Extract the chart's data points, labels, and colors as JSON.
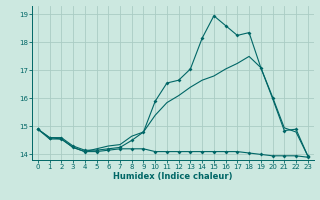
{
  "xlabel": "Humidex (Indice chaleur)",
  "bg_color": "#cce8e0",
  "grid_color": "#aaccc4",
  "line_color": "#006666",
  "xlim": [
    -0.5,
    23.5
  ],
  "ylim": [
    13.8,
    19.3
  ],
  "yticks": [
    14,
    15,
    16,
    17,
    18,
    19
  ],
  "xticks": [
    0,
    1,
    2,
    3,
    4,
    5,
    6,
    7,
    8,
    9,
    10,
    11,
    12,
    13,
    14,
    15,
    16,
    17,
    18,
    19,
    20,
    21,
    22,
    23
  ],
  "line1_x": [
    0,
    1,
    2,
    3,
    4,
    5,
    6,
    7,
    8,
    9,
    10,
    11,
    12,
    13,
    14,
    15,
    16,
    17,
    18,
    19,
    20,
    21,
    22,
    23
  ],
  "line1_y": [
    14.9,
    14.6,
    14.6,
    14.3,
    14.15,
    14.15,
    14.2,
    14.25,
    14.5,
    14.8,
    15.9,
    16.55,
    16.65,
    17.05,
    18.15,
    18.95,
    18.6,
    18.25,
    18.35,
    17.1,
    16.0,
    14.85,
    14.9,
    13.95
  ],
  "line2_x": [
    0,
    1,
    2,
    3,
    4,
    5,
    6,
    7,
    8,
    9,
    10,
    11,
    12,
    13,
    14,
    15,
    16,
    17,
    18,
    19,
    20,
    21,
    22,
    23
  ],
  "line2_y": [
    14.9,
    14.55,
    14.55,
    14.25,
    14.1,
    14.2,
    14.3,
    14.35,
    14.65,
    14.8,
    15.4,
    15.85,
    16.1,
    16.4,
    16.65,
    16.8,
    17.05,
    17.25,
    17.5,
    17.1,
    16.05,
    14.95,
    14.8,
    13.95
  ],
  "line3_x": [
    0,
    1,
    2,
    3,
    4,
    5,
    6,
    7,
    8,
    9,
    10,
    11,
    12,
    13,
    14,
    15,
    16,
    17,
    18,
    19,
    20,
    21,
    22,
    23
  ],
  "line3_y": [
    14.9,
    14.6,
    14.55,
    14.25,
    14.1,
    14.1,
    14.15,
    14.2,
    14.2,
    14.2,
    14.1,
    14.1,
    14.1,
    14.1,
    14.1,
    14.1,
    14.1,
    14.1,
    14.05,
    14.0,
    13.95,
    13.95,
    13.95,
    13.9
  ]
}
